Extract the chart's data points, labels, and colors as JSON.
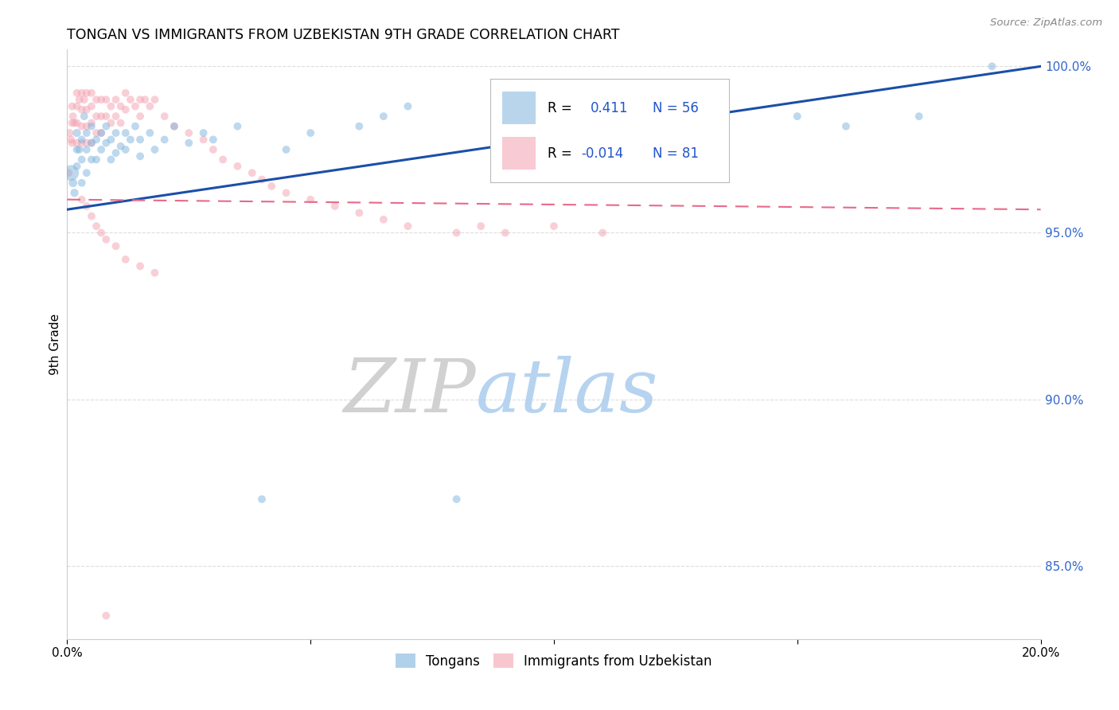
{
  "title": "TONGAN VS IMMIGRANTS FROM UZBEKISTAN 9TH GRADE CORRELATION CHART",
  "source": "Source: ZipAtlas.com",
  "ylabel": "9th Grade",
  "watermark_zip": "ZIP",
  "watermark_atlas": "atlas",
  "xlim": [
    0.0,
    0.2
  ],
  "ylim": [
    0.828,
    1.005
  ],
  "xticks": [
    0.0,
    0.05,
    0.1,
    0.15,
    0.2
  ],
  "xticklabels": [
    "0.0%",
    "",
    "",
    "",
    "20.0%"
  ],
  "yticks_right": [
    0.85,
    0.9,
    0.95,
    1.0
  ],
  "yticklabels_right": [
    "85.0%",
    "90.0%",
    "95.0%",
    "100.0%"
  ],
  "blue_color": "#7EB3DC",
  "pink_color": "#F4A0B0",
  "blue_line_color": "#1B4FA8",
  "pink_line_color": "#E8698A",
  "grid_color": "#DDDDDD",
  "blue_x": [
    0.0008,
    0.0012,
    0.0015,
    0.002,
    0.002,
    0.002,
    0.0025,
    0.003,
    0.003,
    0.003,
    0.0035,
    0.004,
    0.004,
    0.004,
    0.005,
    0.005,
    0.005,
    0.006,
    0.006,
    0.007,
    0.007,
    0.008,
    0.008,
    0.009,
    0.009,
    0.01,
    0.01,
    0.011,
    0.012,
    0.012,
    0.013,
    0.014,
    0.015,
    0.015,
    0.017,
    0.018,
    0.02,
    0.022,
    0.025,
    0.028,
    0.03,
    0.035,
    0.04,
    0.045,
    0.05,
    0.06,
    0.065,
    0.07,
    0.08,
    0.09,
    0.1,
    0.12,
    0.15,
    0.16,
    0.175,
    0.19
  ],
  "blue_y": [
    0.968,
    0.965,
    0.962,
    0.98,
    0.975,
    0.97,
    0.975,
    0.978,
    0.972,
    0.965,
    0.985,
    0.98,
    0.975,
    0.968,
    0.982,
    0.977,
    0.972,
    0.978,
    0.972,
    0.98,
    0.975,
    0.982,
    0.977,
    0.978,
    0.972,
    0.98,
    0.974,
    0.976,
    0.98,
    0.975,
    0.978,
    0.982,
    0.978,
    0.973,
    0.98,
    0.975,
    0.978,
    0.982,
    0.977,
    0.98,
    0.978,
    0.982,
    0.87,
    0.975,
    0.98,
    0.982,
    0.985,
    0.988,
    0.87,
    0.978,
    0.982,
    0.98,
    0.985,
    0.982,
    0.985,
    1.0
  ],
  "blue_sizes": [
    200,
    60,
    55,
    55,
    50,
    50,
    50,
    50,
    50,
    50,
    50,
    50,
    50,
    50,
    50,
    50,
    50,
    50,
    50,
    50,
    50,
    50,
    50,
    50,
    50,
    50,
    50,
    50,
    50,
    50,
    50,
    50,
    50,
    50,
    50,
    50,
    50,
    50,
    50,
    50,
    50,
    50,
    50,
    50,
    50,
    50,
    50,
    50,
    50,
    50,
    50,
    50,
    50,
    50,
    50,
    50
  ],
  "pink_x": [
    0.0003,
    0.0005,
    0.0008,
    0.001,
    0.001,
    0.001,
    0.0012,
    0.0015,
    0.002,
    0.002,
    0.002,
    0.002,
    0.0025,
    0.003,
    0.003,
    0.003,
    0.003,
    0.0035,
    0.004,
    0.004,
    0.004,
    0.004,
    0.005,
    0.005,
    0.005,
    0.005,
    0.006,
    0.006,
    0.006,
    0.007,
    0.007,
    0.007,
    0.008,
    0.008,
    0.009,
    0.009,
    0.01,
    0.01,
    0.011,
    0.011,
    0.012,
    0.012,
    0.013,
    0.014,
    0.015,
    0.015,
    0.016,
    0.017,
    0.018,
    0.02,
    0.022,
    0.025,
    0.028,
    0.03,
    0.032,
    0.035,
    0.038,
    0.04,
    0.042,
    0.045,
    0.05,
    0.055,
    0.06,
    0.065,
    0.07,
    0.08,
    0.085,
    0.09,
    0.1,
    0.11,
    0.003,
    0.004,
    0.005,
    0.006,
    0.007,
    0.008,
    0.01,
    0.012,
    0.015,
    0.018,
    0.008
  ],
  "pink_y": [
    0.968,
    0.98,
    0.978,
    0.988,
    0.983,
    0.977,
    0.985,
    0.983,
    0.992,
    0.988,
    0.983,
    0.977,
    0.99,
    0.992,
    0.987,
    0.982,
    0.977,
    0.99,
    0.992,
    0.987,
    0.982,
    0.977,
    0.992,
    0.988,
    0.983,
    0.977,
    0.99,
    0.985,
    0.98,
    0.99,
    0.985,
    0.98,
    0.99,
    0.985,
    0.988,
    0.983,
    0.99,
    0.985,
    0.988,
    0.983,
    0.992,
    0.987,
    0.99,
    0.988,
    0.99,
    0.985,
    0.99,
    0.988,
    0.99,
    0.985,
    0.982,
    0.98,
    0.978,
    0.975,
    0.972,
    0.97,
    0.968,
    0.966,
    0.964,
    0.962,
    0.96,
    0.958,
    0.956,
    0.954,
    0.952,
    0.95,
    0.952,
    0.95,
    0.952,
    0.95,
    0.96,
    0.958,
    0.955,
    0.952,
    0.95,
    0.948,
    0.946,
    0.942,
    0.94,
    0.938,
    0.835
  ],
  "pink_sizes": [
    50,
    50,
    50,
    50,
    50,
    50,
    50,
    50,
    50,
    50,
    50,
    50,
    50,
    50,
    50,
    50,
    50,
    50,
    50,
    50,
    50,
    50,
    50,
    50,
    50,
    50,
    50,
    50,
    50,
    50,
    50,
    50,
    50,
    50,
    50,
    50,
    50,
    50,
    50,
    50,
    50,
    50,
    50,
    50,
    50,
    50,
    50,
    50,
    50,
    50,
    50,
    50,
    50,
    50,
    50,
    50,
    50,
    50,
    50,
    50,
    50,
    50,
    50,
    50,
    50,
    50,
    50,
    50,
    50,
    50,
    50,
    50,
    50,
    50,
    50,
    50,
    50,
    50,
    50,
    50,
    50
  ]
}
